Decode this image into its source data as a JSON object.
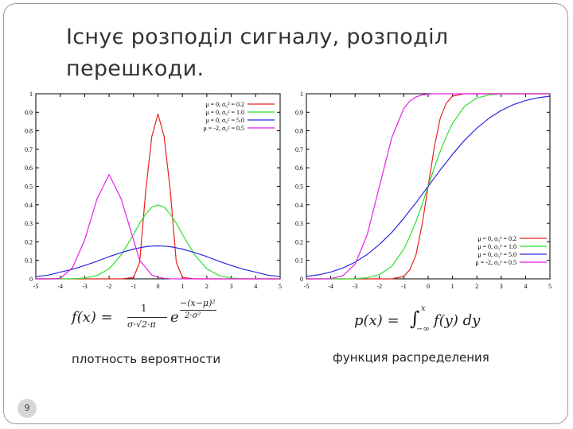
{
  "slide": {
    "title_line1": "Існує розподіл сигналу, розподіл",
    "title_line2": "перешкоди.",
    "page_number": "9"
  },
  "formulas": {
    "pdf": {
      "lhs": "f(x) =",
      "num": "1",
      "den": "σ·√2·π",
      "base": "e",
      "exp_num": "−(x−μ)²",
      "exp_den": "2·σ²"
    },
    "cdf": {
      "lhs": "p(x) =",
      "integral": "∫",
      "upper": "x",
      "lower": "−∞",
      "integrand": "f(y) dy"
    }
  },
  "captions": {
    "pdf": "плотность вероятности",
    "cdf": "функция распределения"
  },
  "chart_data": [
    {
      "type": "line",
      "title": "",
      "xlabel": "",
      "ylabel": "",
      "xlim": [
        -5,
        5
      ],
      "ylim": [
        0,
        1
      ],
      "x_ticks": [
        "-5",
        "-4",
        "-3",
        "-2",
        "-1",
        "0",
        "1",
        "2",
        "3",
        "4",
        "5"
      ],
      "y_ticks": [
        "0",
        "0.1",
        "0.2",
        "0.3",
        "0.4",
        "0.5",
        "0.6",
        "0.7",
        "0.8",
        "0.9",
        "1"
      ],
      "legend_position": "top-right",
      "grid": false,
      "x": [
        -5,
        -4.5,
        -4,
        -3.5,
        -3,
        -2.5,
        -2,
        -1.5,
        -1,
        -0.75,
        -0.5,
        -0.25,
        0,
        0.25,
        0.5,
        0.75,
        1,
        1.5,
        2,
        2.5,
        3,
        3.5,
        4,
        4.5,
        5
      ],
      "series": [
        {
          "name": "μ = 0, σ₀² = 0.2",
          "color": "#e8211b",
          "values": [
            0,
            0,
            0,
            0,
            0,
            0,
            0,
            0,
            0.007,
            0.09,
            0.48,
            0.77,
            0.89,
            0.77,
            0.48,
            0.09,
            0.007,
            0,
            0,
            0,
            0,
            0,
            0,
            0,
            0
          ]
        },
        {
          "name": "μ = 0, σ₀² = 1.0",
          "color": "#2ee02e",
          "values": [
            0,
            0,
            0,
            0.001,
            0.004,
            0.018,
            0.054,
            0.13,
            0.24,
            0.3,
            0.35,
            0.387,
            0.399,
            0.387,
            0.35,
            0.3,
            0.24,
            0.13,
            0.054,
            0.018,
            0.004,
            0.001,
            0,
            0,
            0
          ]
        },
        {
          "name": "μ = 0, σ₀² = 5.0",
          "color": "#2828e0",
          "values": [
            0.012,
            0.02,
            0.036,
            0.052,
            0.072,
            0.095,
            0.12,
            0.142,
            0.161,
            0.168,
            0.174,
            0.177,
            0.178,
            0.177,
            0.174,
            0.168,
            0.161,
            0.142,
            0.12,
            0.095,
            0.072,
            0.052,
            0.036,
            0.02,
            0.012
          ]
        },
        {
          "name": "μ = -2, σ₀² = 0.5",
          "color": "#e81ee8",
          "values": [
            0,
            0,
            0.002,
            0.06,
            0.21,
            0.43,
            0.564,
            0.43,
            0.21,
            0.1,
            0.06,
            0.02,
            0.01,
            0.003,
            0.001,
            0,
            0,
            0,
            0,
            0,
            0,
            0,
            0,
            0,
            0
          ]
        }
      ]
    },
    {
      "type": "line",
      "title": "",
      "xlabel": "",
      "ylabel": "",
      "xlim": [
        -5,
        5
      ],
      "ylim": [
        0,
        1
      ],
      "x_ticks": [
        "-5",
        "-4",
        "-3",
        "-2",
        "-1",
        "0",
        "1",
        "2",
        "3",
        "4",
        "5"
      ],
      "y_ticks": [
        "0",
        "0.1",
        "0.2",
        "0.3",
        "0.4",
        "0.5",
        "0.6",
        "0.7",
        "0.8",
        "0.9",
        "1"
      ],
      "legend_position": "bottom-right",
      "grid": false,
      "x": [
        -5,
        -4.5,
        -4,
        -3.5,
        -3,
        -2.5,
        -2,
        -1.5,
        -1,
        -0.75,
        -0.5,
        -0.25,
        0,
        0.25,
        0.5,
        0.75,
        1,
        1.5,
        2,
        2.5,
        3,
        3.5,
        4,
        4.5,
        5
      ],
      "series": [
        {
          "name": "μ = 0, σ₀² = 0.2",
          "color": "#e8211b",
          "values": [
            0,
            0,
            0,
            0,
            0,
            0,
            0,
            0,
            0.013,
            0.05,
            0.13,
            0.29,
            0.5,
            0.71,
            0.87,
            0.95,
            0.987,
            1,
            1,
            1,
            1,
            1,
            1,
            1,
            1
          ]
        },
        {
          "name": "μ = 0, σ₀² = 1.0",
          "color": "#2ee02e",
          "values": [
            0,
            0,
            0,
            0,
            0.001,
            0.006,
            0.023,
            0.067,
            0.16,
            0.23,
            0.31,
            0.4,
            0.5,
            0.6,
            0.69,
            0.77,
            0.84,
            0.933,
            0.977,
            0.994,
            0.999,
            1,
            1,
            1,
            1
          ]
        },
        {
          "name": "μ = 0, σ₀² = 5.0",
          "color": "#2828e0",
          "values": [
            0.013,
            0.022,
            0.037,
            0.059,
            0.09,
            0.132,
            0.186,
            0.25,
            0.327,
            0.37,
            0.411,
            0.456,
            0.5,
            0.544,
            0.589,
            0.63,
            0.673,
            0.75,
            0.814,
            0.868,
            0.91,
            0.941,
            0.963,
            0.978,
            0.987
          ]
        },
        {
          "name": "μ = -2, σ₀² = 0.5",
          "color": "#e81ee8",
          "values": [
            0,
            0,
            0.001,
            0.017,
            0.079,
            0.24,
            0.5,
            0.76,
            0.921,
            0.96,
            0.983,
            0.993,
            0.998,
            1,
            1,
            1,
            1,
            1,
            1,
            1,
            1,
            1,
            1,
            1,
            1
          ]
        }
      ]
    }
  ]
}
